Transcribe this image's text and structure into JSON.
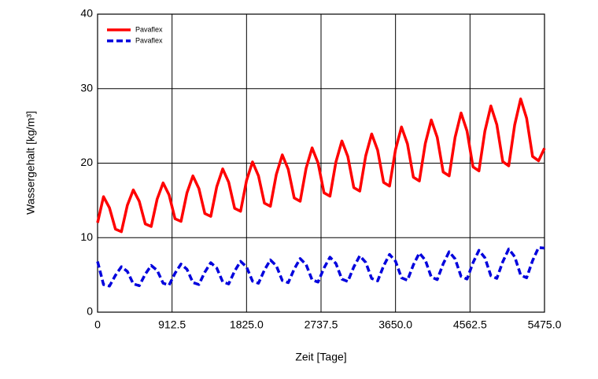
{
  "chart_data": {
    "type": "line",
    "xlabel": "Zeit [Tage]",
    "ylabel": "Wassergehalt [kg/m³]",
    "x": [
      0,
      73,
      146,
      219,
      292,
      365,
      438,
      511,
      584,
      657,
      730,
      803,
      876,
      949,
      1022,
      1095,
      1168,
      1241,
      1314,
      1387,
      1460,
      1533,
      1606,
      1679,
      1752,
      1825,
      1898,
      1971,
      2044,
      2117,
      2190,
      2263,
      2336,
      2409,
      2482,
      2555,
      2628,
      2701,
      2774,
      2847,
      2920,
      2993,
      3066,
      3139,
      3212,
      3285,
      3358,
      3431,
      3504,
      3577,
      3650,
      3723,
      3796,
      3869,
      3942,
      4015,
      4088,
      4161,
      4234,
      4307,
      4380,
      4453,
      4526,
      4599,
      4672,
      4745,
      4818,
      4891,
      4964,
      5037,
      5110,
      5183,
      5256,
      5329,
      5402,
      5475
    ],
    "series": [
      {
        "name": "Pavaflex",
        "color": "#ff0000",
        "style": "solid",
        "values": [
          12,
          15.5,
          14.0,
          11.15,
          10.8,
          14.35,
          16.41,
          14.88,
          11.85,
          11.5,
          15.18,
          17.35,
          15.74,
          12.54,
          12.18,
          16.01,
          18.29,
          16.6,
          13.24,
          12.86,
          16.84,
          19.23,
          17.45,
          13.94,
          13.54,
          17.67,
          20.17,
          18.31,
          14.63,
          14.22,
          18.5,
          21.11,
          19.17,
          15.33,
          14.89,
          19.33,
          22.05,
          20.03,
          16.02,
          15.57,
          20.16,
          22.98,
          20.88,
          16.72,
          16.25,
          20.99,
          23.92,
          21.74,
          17.42,
          16.93,
          21.82,
          24.86,
          22.6,
          18.11,
          17.61,
          22.65,
          25.8,
          23.46,
          18.81,
          18.29,
          23.48,
          26.74,
          24.31,
          19.51,
          18.96,
          24.31,
          27.68,
          25.17,
          20.2,
          19.64,
          25.14,
          28.62,
          26.03,
          20.9,
          20.32,
          22.0
        ]
      },
      {
        "name": "Pavaflex",
        "color": "#0000dd",
        "style": "dashed",
        "values": [
          6.8,
          3.7,
          3.5,
          4.95,
          6.1,
          5.46,
          3.8,
          3.55,
          5.09,
          6.27,
          5.61,
          3.89,
          3.63,
          5.23,
          6.45,
          5.76,
          3.98,
          3.71,
          5.37,
          6.64,
          5.92,
          4.07,
          3.79,
          5.51,
          6.82,
          6.07,
          4.16,
          3.88,
          5.65,
          7.01,
          6.22,
          4.25,
          3.96,
          5.79,
          7.19,
          6.38,
          4.34,
          4.04,
          5.93,
          7.38,
          6.53,
          4.43,
          4.12,
          6.07,
          7.56,
          6.68,
          4.52,
          4.2,
          6.21,
          7.75,
          6.84,
          4.62,
          4.28,
          6.35,
          7.93,
          6.99,
          4.71,
          4.37,
          6.49,
          8.11,
          7.15,
          4.8,
          4.45,
          6.63,
          8.3,
          7.3,
          4.89,
          4.53,
          6.77,
          8.48,
          7.45,
          4.98,
          4.61,
          6.91,
          8.67,
          8.6
        ]
      }
    ],
    "xlim": [
      0,
      5475
    ],
    "xticks": [
      0,
      912.5,
      {
        "value": 1825,
        "label": "1825.0"
      },
      2737.5,
      {
        "value": 3650,
        "label": "3650.0"
      },
      4562.5,
      {
        "value": 5475,
        "label": "5475.0"
      }
    ],
    "ylim": [
      0,
      40
    ],
    "yticks": [
      0,
      10,
      20,
      30,
      40
    ],
    "grid": true,
    "legend": "upper left"
  }
}
